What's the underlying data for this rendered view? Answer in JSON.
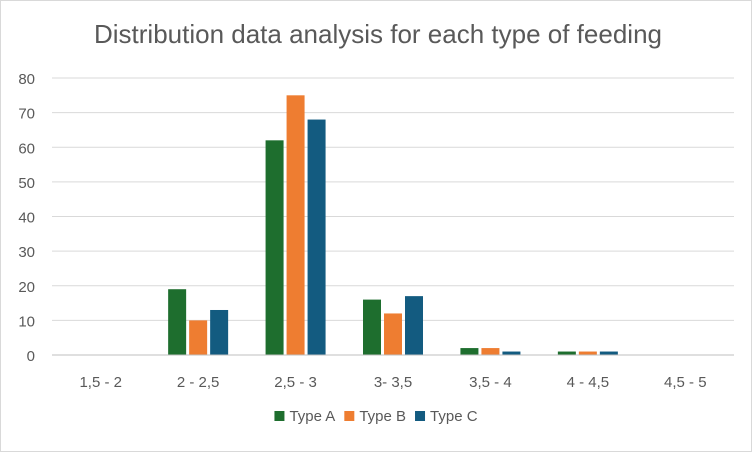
{
  "chart_data": {
    "type": "bar",
    "title": "Distribution data analysis for each type of feeding",
    "xlabel": "",
    "ylabel": "",
    "categories": [
      "1,5 -  2",
      "2 - 2,5",
      "2,5 - 3",
      "3- 3,5",
      "3,5 - 4",
      "4 - 4,5",
      "4,5 - 5"
    ],
    "series": [
      {
        "name": "Type A",
        "color": "#1e6e2e",
        "values": [
          0,
          19,
          62,
          16,
          2,
          1,
          0
        ]
      },
      {
        "name": "Type B",
        "color": "#ee7d31",
        "values": [
          0,
          10,
          75,
          12,
          2,
          1,
          0
        ]
      },
      {
        "name": "Type C",
        "color": "#135b80",
        "values": [
          0,
          13,
          68,
          17,
          1,
          1,
          0
        ]
      }
    ],
    "ylim": [
      0,
      80
    ],
    "yticks": [
      0,
      10,
      20,
      30,
      40,
      50,
      60,
      70,
      80
    ],
    "grid": true,
    "legend": "bottom",
    "colors": {
      "gridline": "#d9d9d9",
      "axis": "#bfbfbf",
      "text": "#595959"
    }
  }
}
